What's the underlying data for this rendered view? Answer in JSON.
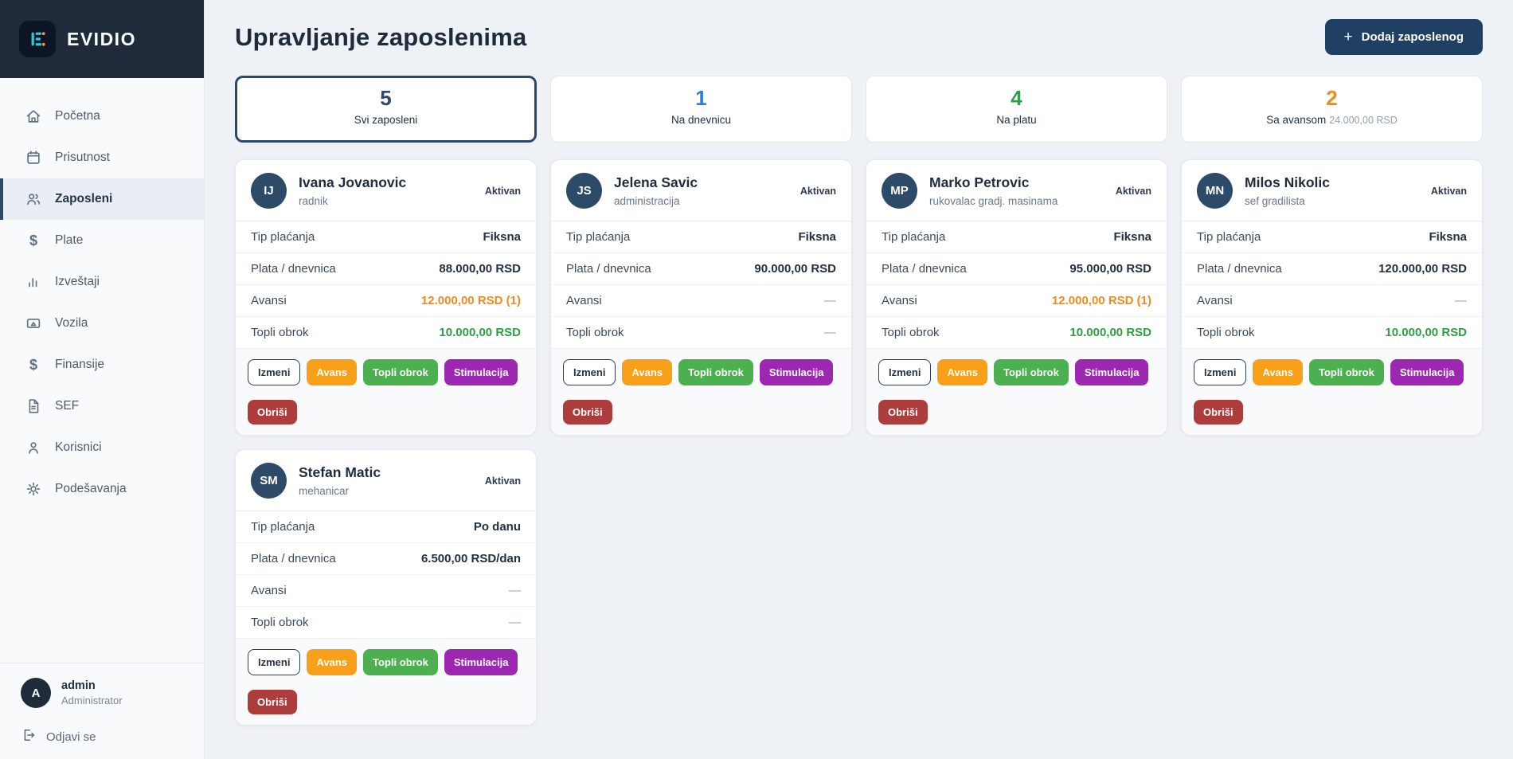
{
  "app": {
    "name": "EVIDIO"
  },
  "colors": {
    "navy": "#1f3f63",
    "sidebar_dark": "#1f2b3a",
    "teal": "#36c5d9",
    "orange": "#f9a01b",
    "orange_text": "#ef8b1d",
    "green": "#4caf50",
    "green_text": "#2e9e44",
    "purple": "#9c27b0",
    "red": "#ad3d3d",
    "blue": "#2a7de1"
  },
  "sidebar": {
    "items": [
      {
        "key": "pocetna",
        "label": "Početna",
        "icon": "home",
        "active": false
      },
      {
        "key": "prisutnost",
        "label": "Prisutnost",
        "icon": "calendar",
        "active": false
      },
      {
        "key": "zaposleni",
        "label": "Zaposleni",
        "icon": "users",
        "active": true
      },
      {
        "key": "plate",
        "label": "Plate",
        "icon": "dollar",
        "active": false
      },
      {
        "key": "izvestaji",
        "label": "Izveštaji",
        "icon": "chart",
        "active": false
      },
      {
        "key": "vozila",
        "label": "Vozila",
        "icon": "vehicle",
        "active": false
      },
      {
        "key": "finansije",
        "label": "Finansije",
        "icon": "dollar",
        "active": false
      },
      {
        "key": "sef",
        "label": "SEF",
        "icon": "document",
        "active": false
      },
      {
        "key": "korisnici",
        "label": "Korisnici",
        "icon": "user",
        "active": false
      },
      {
        "key": "podesavanja",
        "label": "Podešavanja",
        "icon": "gear",
        "active": false
      }
    ],
    "user": {
      "initial": "A",
      "name": "admin",
      "role": "Administrator"
    },
    "logout_label": "Odjavi se"
  },
  "header": {
    "title": "Upravljanje zaposlenima",
    "add_button_label": "Dodaj zaposlenog"
  },
  "stats": [
    {
      "key": "svi-zaposleni",
      "value": "5",
      "label": "Svi zaposleni",
      "extra": "",
      "color": "#2b4a6b",
      "selected": true
    },
    {
      "key": "na-dnevnicu",
      "value": "1",
      "label": "Na dnevnicu",
      "extra": "",
      "color": "#2a7de1",
      "selected": false
    },
    {
      "key": "na-platu",
      "value": "4",
      "label": "Na platu",
      "extra": "",
      "color": "#2f9e44",
      "selected": false
    },
    {
      "key": "sa-avansom",
      "value": "2",
      "label": "Sa avansom",
      "extra": "24.000,00 RSD",
      "color": "#f08c1a",
      "selected": false
    }
  ],
  "card_labels": {
    "tip": "Tip plaćanja",
    "plata": "Plata / dnevnica",
    "avansi": "Avansi",
    "topli": "Topli obrok"
  },
  "actions": {
    "izmeni": "Izmeni",
    "avans": "Avans",
    "topli": "Topli obrok",
    "stimulacija": "Stimulacija",
    "obrisi": "Obriši"
  },
  "employees": [
    {
      "key": "ivana-jovanovic",
      "initials": "IJ",
      "name": "Ivana Jovanovic",
      "role": "radnik",
      "status": "Aktivan",
      "tip_value": "Fiksna",
      "plata_value": "88.000,00 RSD",
      "avansi_value": "12.000,00 RSD (1)",
      "topli_value": "10.000,00 RSD"
    },
    {
      "key": "jelena-savic",
      "initials": "JS",
      "name": "Jelena Savic",
      "role": "administracija",
      "status": "Aktivan",
      "tip_value": "Fiksna",
      "plata_value": "90.000,00 RSD",
      "avansi_value": "—",
      "topli_value": "—"
    },
    {
      "key": "marko-petrovic",
      "initials": "MP",
      "name": "Marko Petrovic",
      "role": "rukovalac gradj. masinama",
      "status": "Aktivan",
      "tip_value": "Fiksna",
      "plata_value": "95.000,00 RSD",
      "avansi_value": "12.000,00 RSD (1)",
      "topli_value": "10.000,00 RSD"
    },
    {
      "key": "milos-nikolic",
      "initials": "MN",
      "name": "Milos Nikolic",
      "role": "sef gradilista",
      "status": "Aktivan",
      "tip_value": "Fiksna",
      "plata_value": "120.000,00 RSD",
      "avansi_value": "—",
      "topli_value": "10.000,00 RSD"
    },
    {
      "key": "stefan-matic",
      "initials": "SM",
      "name": "Stefan Matic",
      "role": "mehanicar",
      "status": "Aktivan",
      "tip_value": "Po danu",
      "plata_value": "6.500,00 RSD/dan",
      "avansi_value": "—",
      "topli_value": "—"
    }
  ]
}
